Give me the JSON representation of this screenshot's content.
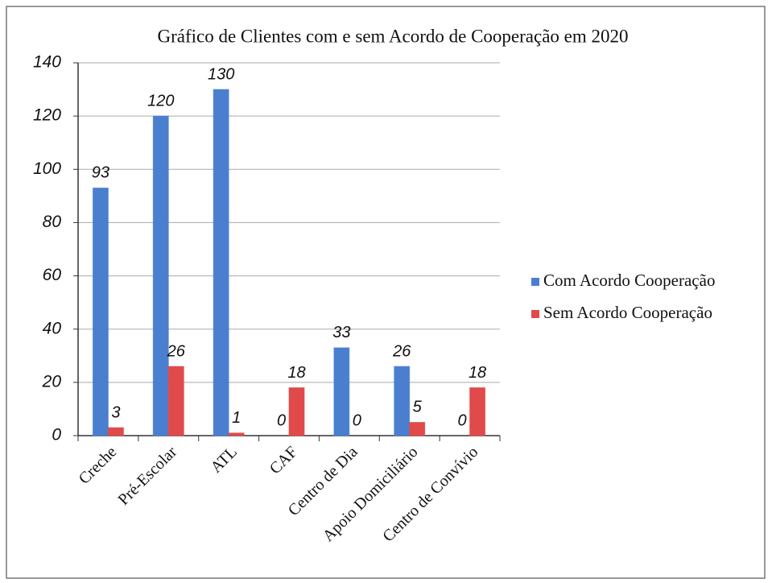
{
  "chart_data": {
    "type": "bar",
    "title": "Gráfico de Clientes com e sem Acordo de Cooperação em  2020",
    "categories": [
      "Creche",
      "Pré-Escolar",
      "ATL",
      "CAF",
      "Centro de Dia",
      "Apoio Domiciliário",
      "Centro de Convívio"
    ],
    "series": [
      {
        "name": "Com Acordo Cooperação",
        "color": "#4a7fcf",
        "values": [
          93,
          120,
          130,
          0,
          33,
          26,
          0
        ]
      },
      {
        "name": "Sem Acordo Cooperação",
        "color": "#e04a4a",
        "values": [
          3,
          26,
          1,
          18,
          0,
          5,
          18
        ]
      }
    ],
    "ylim": [
      0,
      140
    ],
    "yticks": [
      0,
      20,
      40,
      60,
      80,
      100,
      120,
      140
    ],
    "grid": true,
    "legend": "right"
  }
}
